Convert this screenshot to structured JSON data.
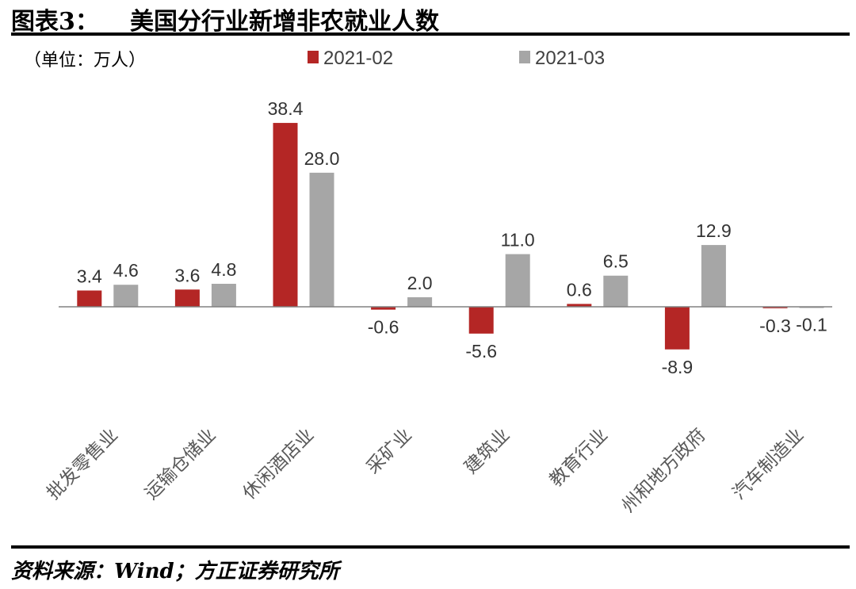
{
  "header": {
    "figure_number": "图表3：",
    "title": "美国分行业新增非农就业人数"
  },
  "unit_label": "（单位：万人）",
  "source": "资料来源：Wind；方正证券研究所",
  "colors": {
    "series1": "#b42625",
    "series2": "#a6a6a6",
    "axis": "#808080"
  },
  "chart_data": {
    "type": "bar",
    "categories": [
      "批发零售业",
      "运输仓储业",
      "休闲酒店业",
      "采矿业",
      "建筑业",
      "教育行业",
      "州和地方政府",
      "汽车制造业"
    ],
    "series": [
      {
        "name": "2021-02",
        "values": [
          3.4,
          3.6,
          38.4,
          -0.6,
          -5.6,
          0.6,
          -8.9,
          -0.3
        ],
        "labels": [
          "3.4",
          "3.6",
          "38.4",
          "-0.6",
          "-5.6",
          "0.6",
          "-8.9",
          "-0.3"
        ]
      },
      {
        "name": "2021-03",
        "values": [
          4.6,
          4.8,
          28.0,
          2.0,
          11.0,
          6.5,
          12.9,
          -0.1
        ],
        "labels": [
          "4.6",
          "4.8",
          "28.0",
          "2.0",
          "11.0",
          "6.5",
          "12.9",
          "-0.1"
        ]
      }
    ],
    "legend_position": "top",
    "grid": false,
    "ylim": [
      -10,
      40
    ]
  }
}
